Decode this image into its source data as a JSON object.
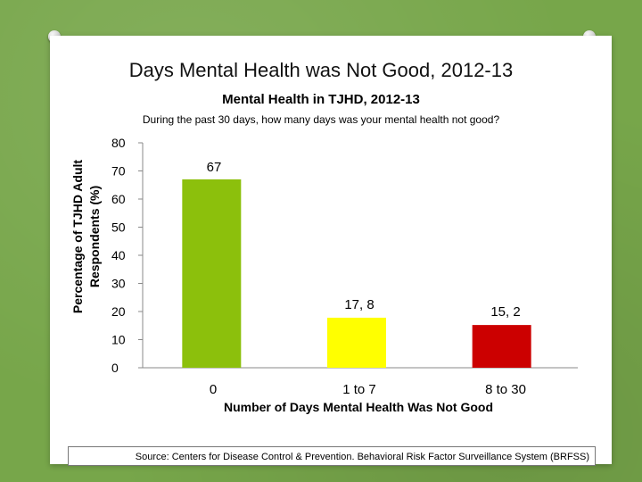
{
  "slide": {
    "title_main": "Days Mental Health was Not Good,",
    "title_years": "2012-13",
    "source": "Source: Centers for Disease Control & Prevention. Behavioral Risk Factor Surveillance System (BRFSS)"
  },
  "chart_data": {
    "type": "bar",
    "title": "Mental Health in TJHD, 2012-13",
    "subtitle": "During the past 30 days, how many days was your mental health not good?",
    "xlabel": "Number of Days Mental Health Was Not Good",
    "ylabel_line1": "Percentage  of TJHD Adult",
    "ylabel_line2": "Respondents (%)",
    "categories": [
      "0",
      "1 to 7",
      "8 to 30"
    ],
    "values": [
      67,
      17.8,
      15.2
    ],
    "value_labels": [
      "67",
      "17, 8",
      "15, 2"
    ],
    "bar_colors": [
      "#8cc00c",
      "#ffff00",
      "#cc0000"
    ],
    "ylim": [
      0,
      80
    ],
    "yticks": [
      0,
      10,
      20,
      30,
      40,
      50,
      60,
      70,
      80
    ],
    "grid": false,
    "legend": "none"
  }
}
